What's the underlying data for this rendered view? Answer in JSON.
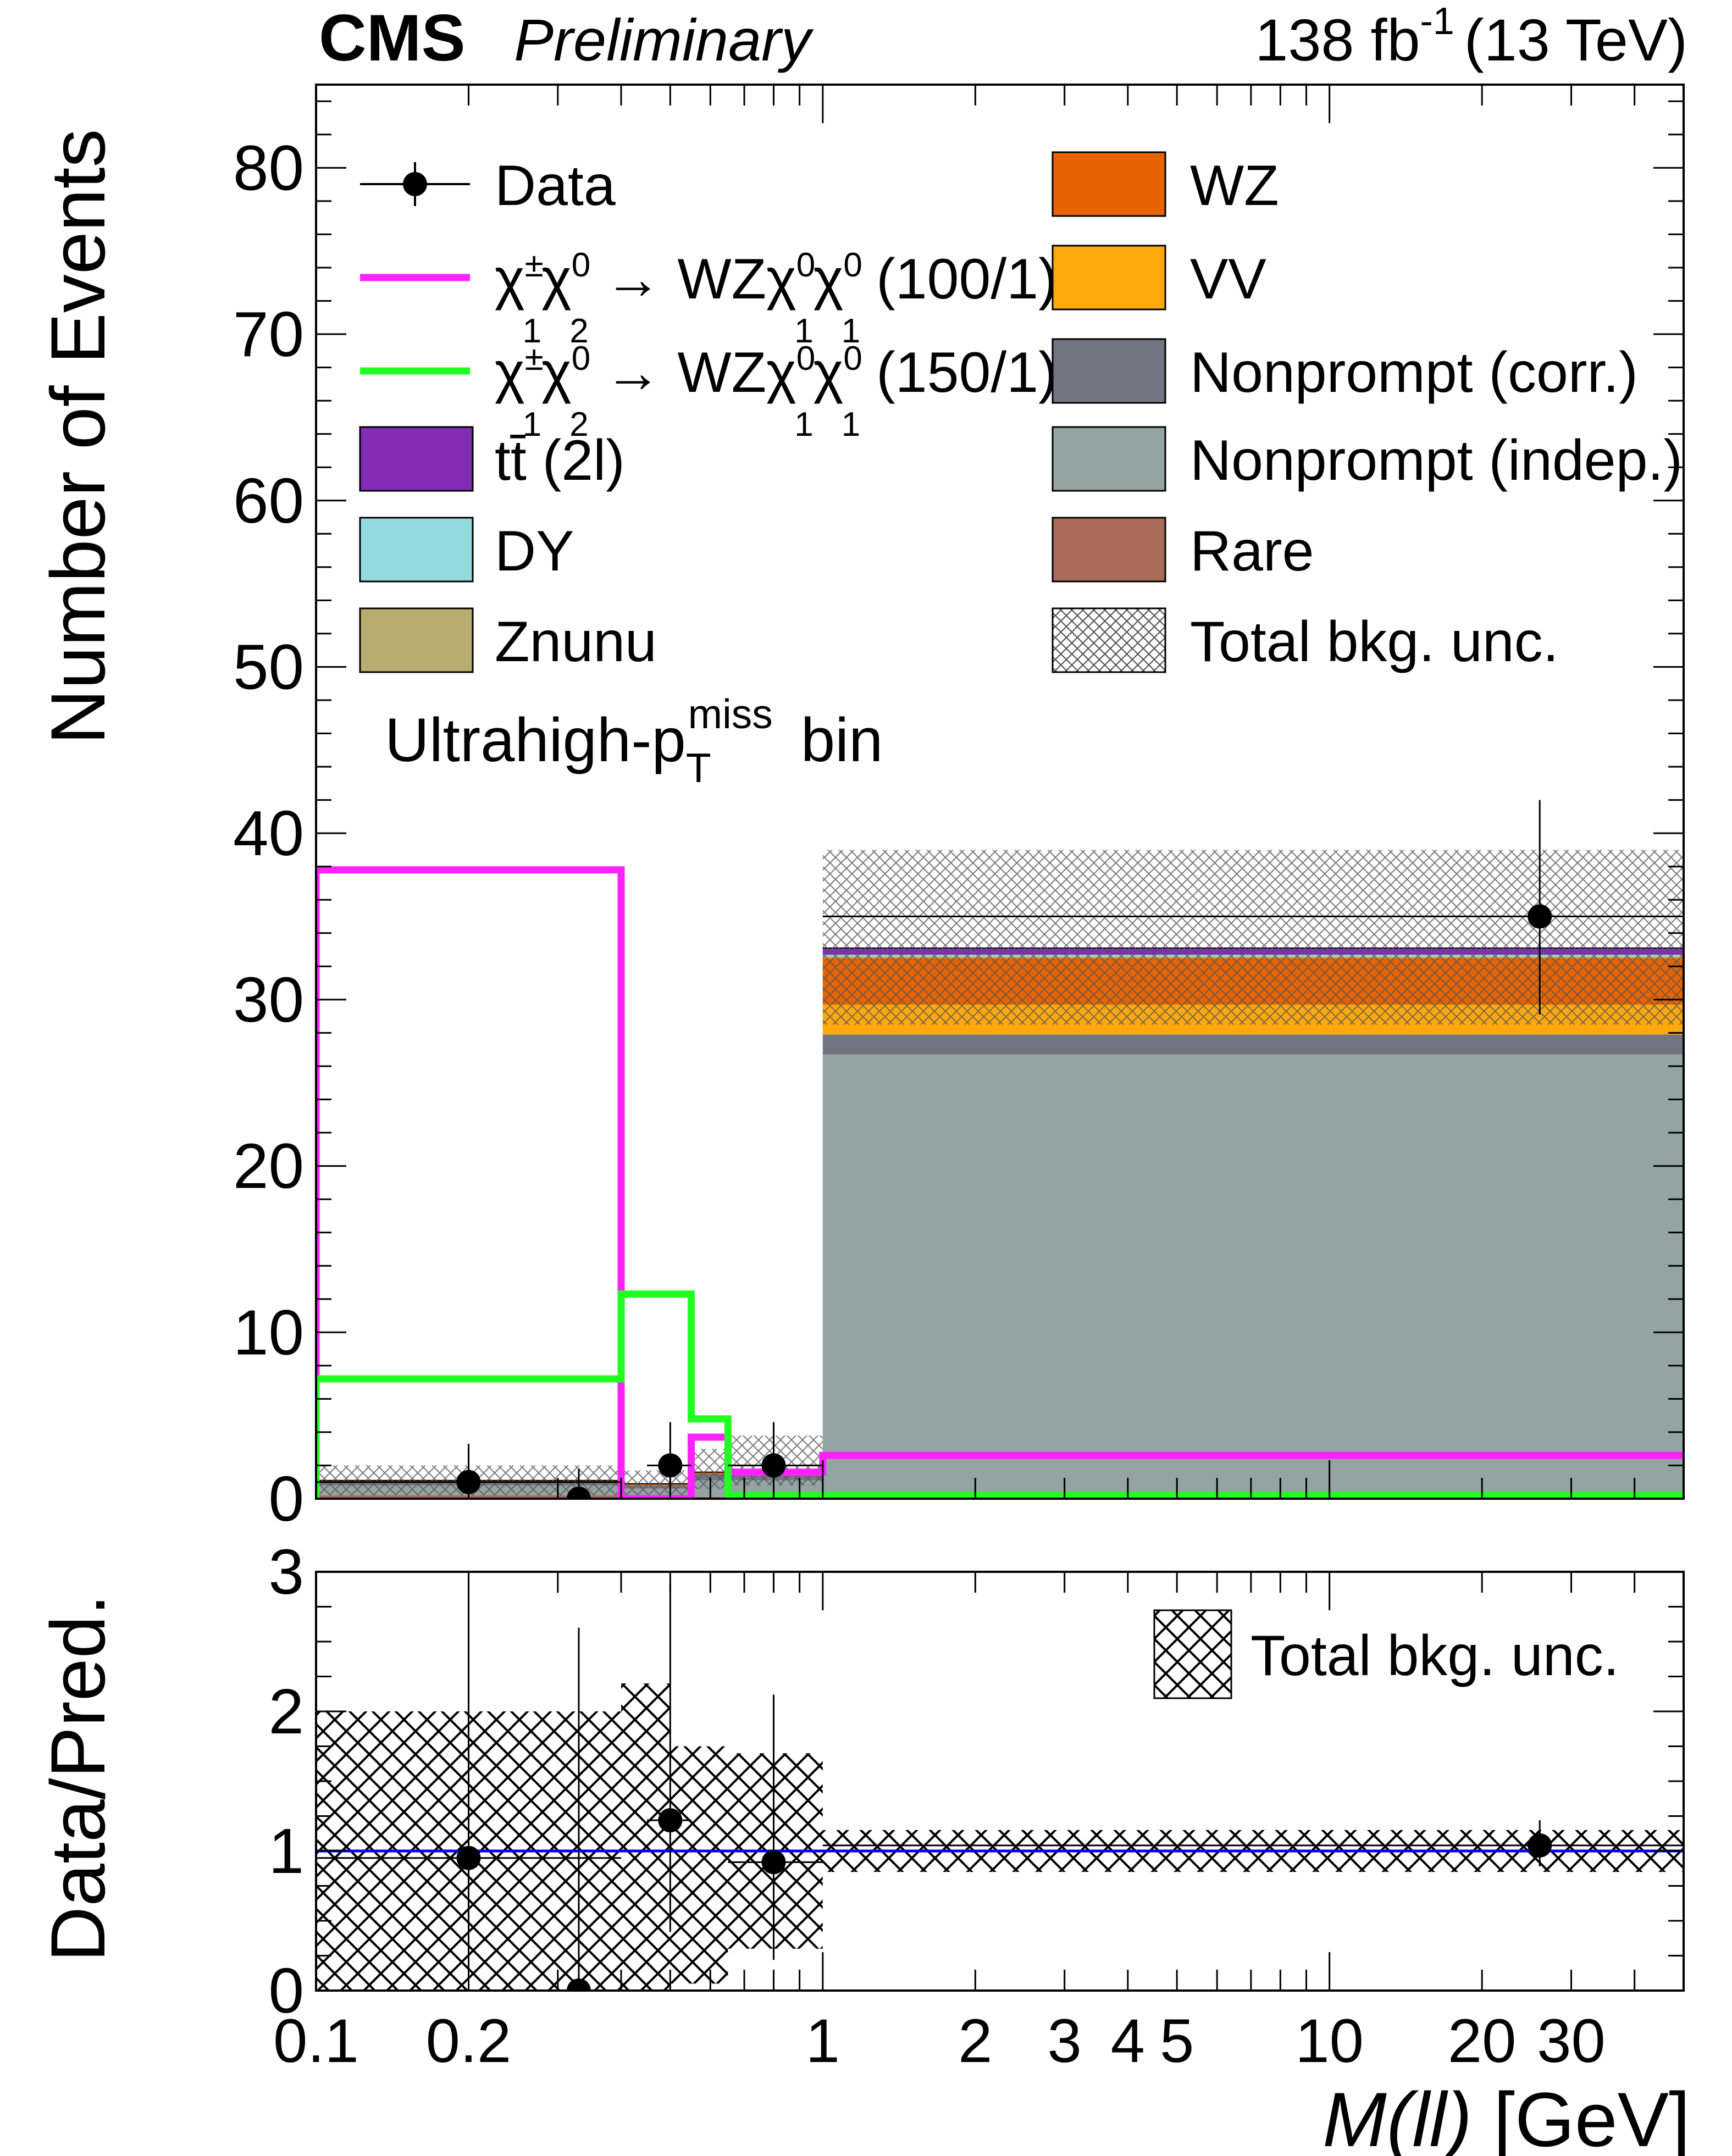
{
  "header": {
    "experiment": "CMS",
    "status": "Preliminary",
    "lumi": "138 fb",
    "lumi_exp": "-1",
    "energy": "(13 TeV)"
  },
  "chart_data": [
    {
      "type": "bar",
      "panel": "main",
      "xscale": "log",
      "xlim": [
        0.1,
        50
      ],
      "ylim": [
        0,
        85
      ],
      "ylabel": "Number of Events",
      "yticks": [
        0,
        10,
        20,
        30,
        40,
        50,
        60,
        70,
        80
      ],
      "annotation": "Ultrahigh-p_T^miss bin",
      "bin_edges": [
        0.1,
        0.4,
        0.55,
        0.65,
        1.0,
        50
      ],
      "stack": [
        {
          "name": "Rare",
          "color": "#a96b59",
          "values": [
            0.2,
            0.1,
            0.1,
            0.1,
            0.2
          ]
        },
        {
          "name": "Nonprompt (indep.)",
          "color": "#94a4a2",
          "values": [
            0.6,
            0.5,
            1.0,
            1.0,
            26.5
          ]
        },
        {
          "name": "Nonprompt (corr.)",
          "color": "#717581",
          "values": [
            0.2,
            0.2,
            0.4,
            0.4,
            1.2
          ]
        },
        {
          "name": "VV",
          "color": "#ffa90e",
          "values": [
            0.0,
            0.0,
            0.0,
            0.0,
            1.8
          ]
        },
        {
          "name": "WZ",
          "color": "#e76300",
          "values": [
            0.1,
            0.1,
            0.1,
            0.1,
            2.8
          ]
        },
        {
          "name": "Znunu",
          "color": "#b9ac70",
          "values": [
            0.0,
            0.0,
            0.0,
            0.0,
            0.1
          ]
        },
        {
          "name": "DY",
          "color": "#92dadd",
          "values": [
            0.0,
            0.0,
            0.0,
            0.0,
            0.1
          ]
        },
        {
          "name": "tt̄ (2l)",
          "color": "#832db6",
          "values": [
            0.0,
            0.0,
            0.0,
            0.0,
            0.4
          ]
        }
      ],
      "bkg_unc": {
        "name": "Total bkg. unc.",
        "low": [
          0.2,
          0.0,
          0.6,
          0.8,
          28.5
        ],
        "high": [
          2.0,
          1.7,
          3.0,
          3.8,
          39.0
        ]
      },
      "signals": [
        {
          "name": "χ₁±χ₂⁰ → WZχ₁⁰χ₁⁰ (100/1)",
          "color": "#ff22ff",
          "values": [
            37.8,
            0.0,
            3.7,
            1.6,
            2.6
          ]
        },
        {
          "name": "χ₁±χ₂⁰ → WZχ₁⁰χ₁⁰ (150/1)",
          "color": "#22ff22",
          "values": [
            7.2,
            12.3,
            4.8,
            0.2,
            0.2
          ]
        }
      ],
      "data": {
        "name": "Data",
        "x": [
          0.2,
          0.33,
          0.5,
          0.8,
          26
        ],
        "xerr_low": [
          0.1,
          0.07,
          0.05,
          0.15,
          25
        ],
        "xerr_high": [
          0.2,
          0.07,
          0.05,
          0.2,
          24
        ],
        "y": [
          1,
          0,
          2,
          2,
          35
        ],
        "yerr_low": [
          0.8,
          0,
          1.3,
          1.3,
          5.9
        ],
        "yerr_high": [
          2.3,
          1.8,
          2.6,
          2.6,
          7.0
        ]
      },
      "legend": [
        {
          "label": "Data",
          "kind": "marker"
        },
        {
          "label": "χ₁±χ₂⁰ → WZχ₁⁰χ₁⁰ (100/1)",
          "kind": "line",
          "color": "#ff22ff"
        },
        {
          "label": "χ₁±χ₂⁰ → WZχ₁⁰χ₁⁰ (150/1)",
          "kind": "line",
          "color": "#22ff22"
        },
        {
          "label": "tt̄ (2l)",
          "kind": "box",
          "color": "#832db6"
        },
        {
          "label": "DY",
          "kind": "box",
          "color": "#92dadd"
        },
        {
          "label": "Znunu",
          "kind": "box",
          "color": "#b9ac70"
        },
        {
          "label": "WZ",
          "kind": "box",
          "color": "#e76300"
        },
        {
          "label": "VV",
          "kind": "box",
          "color": "#ffa90e"
        },
        {
          "label": "Nonprompt (corr.)",
          "kind": "box",
          "color": "#717581"
        },
        {
          "label": "Nonprompt (indep.)",
          "kind": "box",
          "color": "#94a4a2"
        },
        {
          "label": "Rare",
          "kind": "box",
          "color": "#a96b59"
        },
        {
          "label": "Total bkg. unc.",
          "kind": "hatch"
        }
      ]
    },
    {
      "type": "scatter",
      "panel": "ratio",
      "xscale": "log",
      "xlim": [
        0.1,
        50
      ],
      "ylim": [
        0,
        3
      ],
      "ylabel": "Data/Pred.",
      "xlabel": "M(ll) [GeV]",
      "yticks": [
        0,
        1,
        2,
        3
      ],
      "xtick_labels": [
        "0.1",
        "0.2",
        "1",
        "2",
        "3",
        "4",
        "5",
        "10",
        "20",
        "30"
      ],
      "xtick_values": [
        0.1,
        0.2,
        1,
        2,
        3,
        4,
        5,
        10,
        20,
        30
      ],
      "unity_line_color": "#0000ff",
      "bkg_unc_band": {
        "edges": [
          0.1,
          0.4,
          0.5,
          0.65,
          1.0,
          50
        ],
        "low": [
          0.0,
          0.0,
          0.05,
          0.3,
          0.85
        ],
        "high": [
          2.0,
          2.2,
          1.75,
          1.7,
          1.15
        ]
      },
      "points": {
        "x": [
          0.2,
          0.33,
          0.5,
          0.8,
          26
        ],
        "y": [
          0.95,
          0.0,
          1.22,
          0.92,
          1.04
        ],
        "yerr_low": [
          0.95,
          0.0,
          0.8,
          0.7,
          0.15
        ],
        "yerr_high": [
          2.1,
          2.6,
          1.7,
          1.2,
          0.18
        ]
      },
      "legend": [
        {
          "label": "Total bkg. unc.",
          "kind": "hatch"
        }
      ]
    }
  ]
}
